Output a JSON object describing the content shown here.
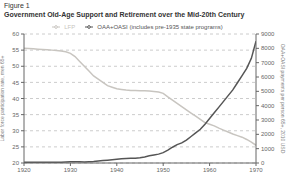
{
  "chart_data": {
    "type": "line",
    "annotations": [
      "Figure 1"
    ],
    "title": "Government Old-Age Support and Retirement over the Mid-20th Century",
    "x": [
      1920,
      1921,
      1922,
      1923,
      1924,
      1925,
      1926,
      1927,
      1928,
      1929,
      1930,
      1931,
      1932,
      1933,
      1934,
      1935,
      1936,
      1937,
      1938,
      1939,
      1940,
      1941,
      1942,
      1943,
      1944,
      1945,
      1946,
      1947,
      1948,
      1949,
      1950,
      1951,
      1952,
      1953,
      1954,
      1955,
      1956,
      1957,
      1958,
      1959,
      1960,
      1961,
      1962,
      1963,
      1964,
      1965,
      1966,
      1967,
      1968,
      1969,
      1970
    ],
    "series": [
      {
        "name": "LFP",
        "color": "#c8c5c0",
        "axis": "y",
        "values": [
          55.6,
          55.5,
          55.4,
          55.3,
          55.2,
          55.1,
          55.0,
          54.9,
          54.7,
          54.5,
          54.0,
          53.0,
          51.5,
          50.0,
          48.5,
          47.0,
          46.0,
          45.0,
          44.0,
          43.5,
          43.0,
          42.8,
          42.6,
          42.5,
          42.5,
          42.4,
          42.4,
          42.3,
          42.2,
          42.0,
          41.6,
          40.5,
          39.5,
          38.5,
          37.5,
          36.5,
          35.5,
          34.5,
          33.5,
          32.5,
          32.0,
          31.5,
          30.8,
          30.2,
          29.6,
          29.0,
          28.5,
          28.0,
          27.3,
          26.5,
          25.5
        ]
      },
      {
        "name": "OAA+OASI (includes pre-1935 state programs)",
        "color": "#555555",
        "axis": "y2",
        "values": [
          50,
          50,
          50,
          50,
          50,
          50,
          50,
          55,
          60,
          70,
          80,
          85,
          80,
          75,
          90,
          110,
          140,
          170,
          200,
          230,
          260,
          290,
          310,
          330,
          340,
          360,
          420,
          500,
          560,
          620,
          720,
          900,
          1100,
          1280,
          1400,
          1600,
          1850,
          2100,
          2350,
          2700,
          3100,
          3500,
          3900,
          4300,
          4700,
          5100,
          5600,
          6100,
          6600,
          7300,
          8500
        ]
      }
    ],
    "xlim": [
      1920,
      1970
    ],
    "xticks": [
      1920,
      1930,
      1940,
      1950,
      1960,
      1970
    ],
    "ylim": [
      20,
      60
    ],
    "yticks": [
      20,
      25,
      30,
      35,
      40,
      45,
      50,
      55,
      60
    ],
    "y2lim": [
      0,
      9000
    ],
    "y2ticks": [
      0,
      1000,
      2000,
      3000,
      4000,
      5000,
      6000,
      7000,
      8000,
      9000
    ],
    "ylabel": "Labor force participation rate, men 65+",
    "y2label": "OAA+OASI payments per person 65+, 2010 USD",
    "grid": true,
    "legend": "top"
  }
}
